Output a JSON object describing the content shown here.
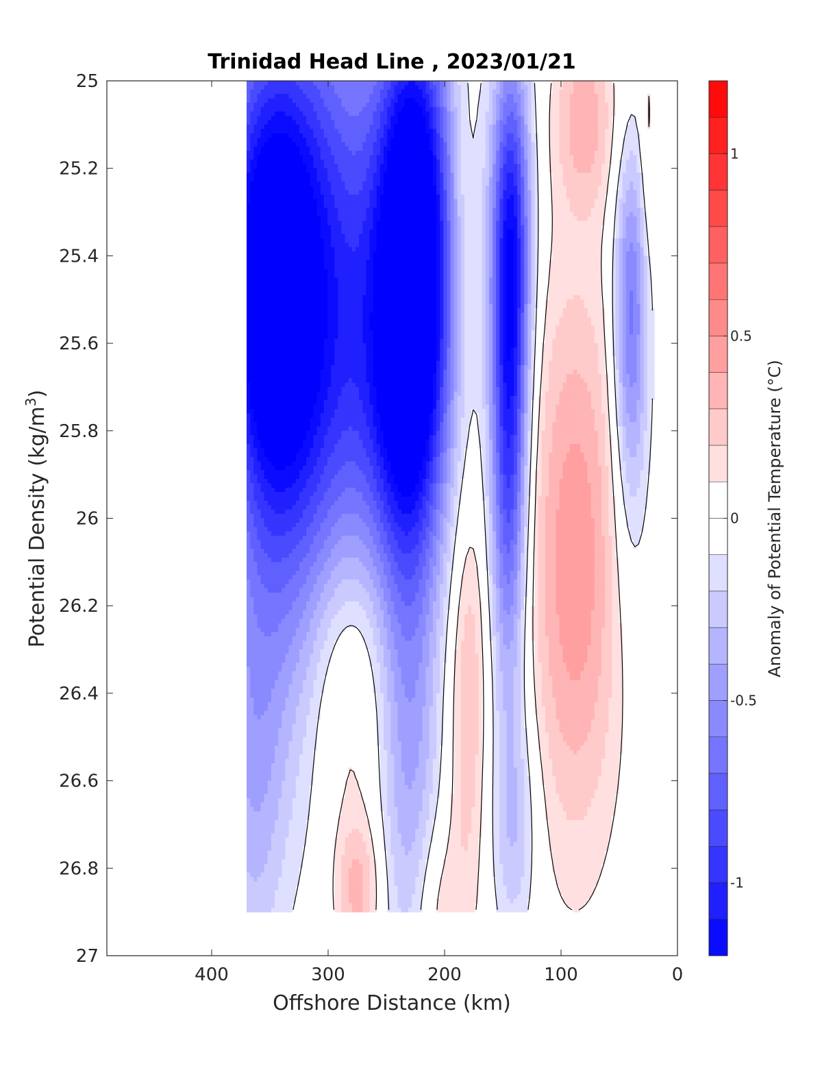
{
  "chart_data": {
    "type": "heatmap",
    "subtype": "filled-contour",
    "title": "Trinidad Head Line , 2023/01/21",
    "xlabel": "Offshore Distance (km)",
    "ylabel_main": "Potential Density (kg/m",
    "ylabel_sup": "3",
    "ylabel_close": ")",
    "xlim": [
      490,
      0
    ],
    "x_reversed": true,
    "xticks": [
      400,
      300,
      200,
      100,
      0
    ],
    "ylim": [
      25,
      27
    ],
    "y_reversed": true,
    "yticks": [
      25,
      25.2,
      25.4,
      25.6,
      25.8,
      26,
      26.2,
      26.4,
      26.6,
      26.8,
      27
    ],
    "data_extent": {
      "x": [
        370,
        20
      ],
      "y": [
        25,
        26.9
      ]
    },
    "colorbar": {
      "label": "Anomaly of Potential Temperature (°C)",
      "range": [
        -1.2,
        1.2
      ],
      "step": 0.1,
      "ticks": [
        1,
        0.5,
        0,
        -0.5,
        -1
      ],
      "tick_labels": [
        "1",
        "0.5",
        "0",
        "-0.5",
        "-1"
      ],
      "colors": {
        "negative_max": "#0000ff",
        "zero": "#ffffff",
        "positive_max": "#ff0000"
      }
    },
    "zero_contour_color": "#000000",
    "anomaly_features": [
      {
        "x": 350,
        "y": 25.5,
        "value": -1.05,
        "sx": 28,
        "sy": 0.35
      },
      {
        "x": 330,
        "y": 25.25,
        "value": -0.55,
        "sx": 55,
        "sy": 0.5
      },
      {
        "x": 280,
        "y": 25.6,
        "value": -0.55,
        "sx": 45,
        "sy": 0.45
      },
      {
        "x": 225,
        "y": 25.3,
        "value": -1.25,
        "sx": 22,
        "sy": 0.35
      },
      {
        "x": 230,
        "y": 25.75,
        "value": -0.7,
        "sx": 24,
        "sy": 0.3
      },
      {
        "x": 330,
        "y": 26.15,
        "value": -0.3,
        "sx": 40,
        "sy": 0.4
      },
      {
        "x": 365,
        "y": 26.6,
        "value": -0.3,
        "sx": 20,
        "sy": 0.35
      },
      {
        "x": 230,
        "y": 26.5,
        "value": -0.4,
        "sx": 18,
        "sy": 0.4
      },
      {
        "x": 185,
        "y": 25.3,
        "value": 0.12,
        "sx": 8,
        "sy": 0.25
      },
      {
        "x": 180,
        "y": 26.4,
        "value": 0.3,
        "sx": 12,
        "sy": 0.35
      },
      {
        "x": 205,
        "y": 26.9,
        "value": 0.2,
        "sx": 15,
        "sy": 0.15
      },
      {
        "x": 143,
        "y": 25.35,
        "value": -1.0,
        "sx": 12,
        "sy": 0.3
      },
      {
        "x": 145,
        "y": 25.9,
        "value": -0.8,
        "sx": 11,
        "sy": 0.35
      },
      {
        "x": 140,
        "y": 26.7,
        "value": -0.3,
        "sx": 14,
        "sy": 0.2
      },
      {
        "x": 80,
        "y": 25.08,
        "value": 0.35,
        "sx": 18,
        "sy": 0.15
      },
      {
        "x": 88,
        "y": 26.1,
        "value": 0.48,
        "sx": 28,
        "sy": 0.45
      },
      {
        "x": 40,
        "y": 25.5,
        "value": -0.55,
        "sx": 10,
        "sy": 0.25
      },
      {
        "x": 40,
        "y": 25.85,
        "value": -0.2,
        "sx": 12,
        "sy": 0.3
      },
      {
        "x": 285,
        "y": 26.35,
        "value": 0.35,
        "sx": 25,
        "sy": 0.25
      },
      {
        "x": 275,
        "y": 26.85,
        "value": 0.35,
        "sx": 14,
        "sy": 0.12
      },
      {
        "x": 25,
        "y": 25.15,
        "value": 0.15,
        "sx": 5,
        "sy": 0.2
      }
    ]
  }
}
